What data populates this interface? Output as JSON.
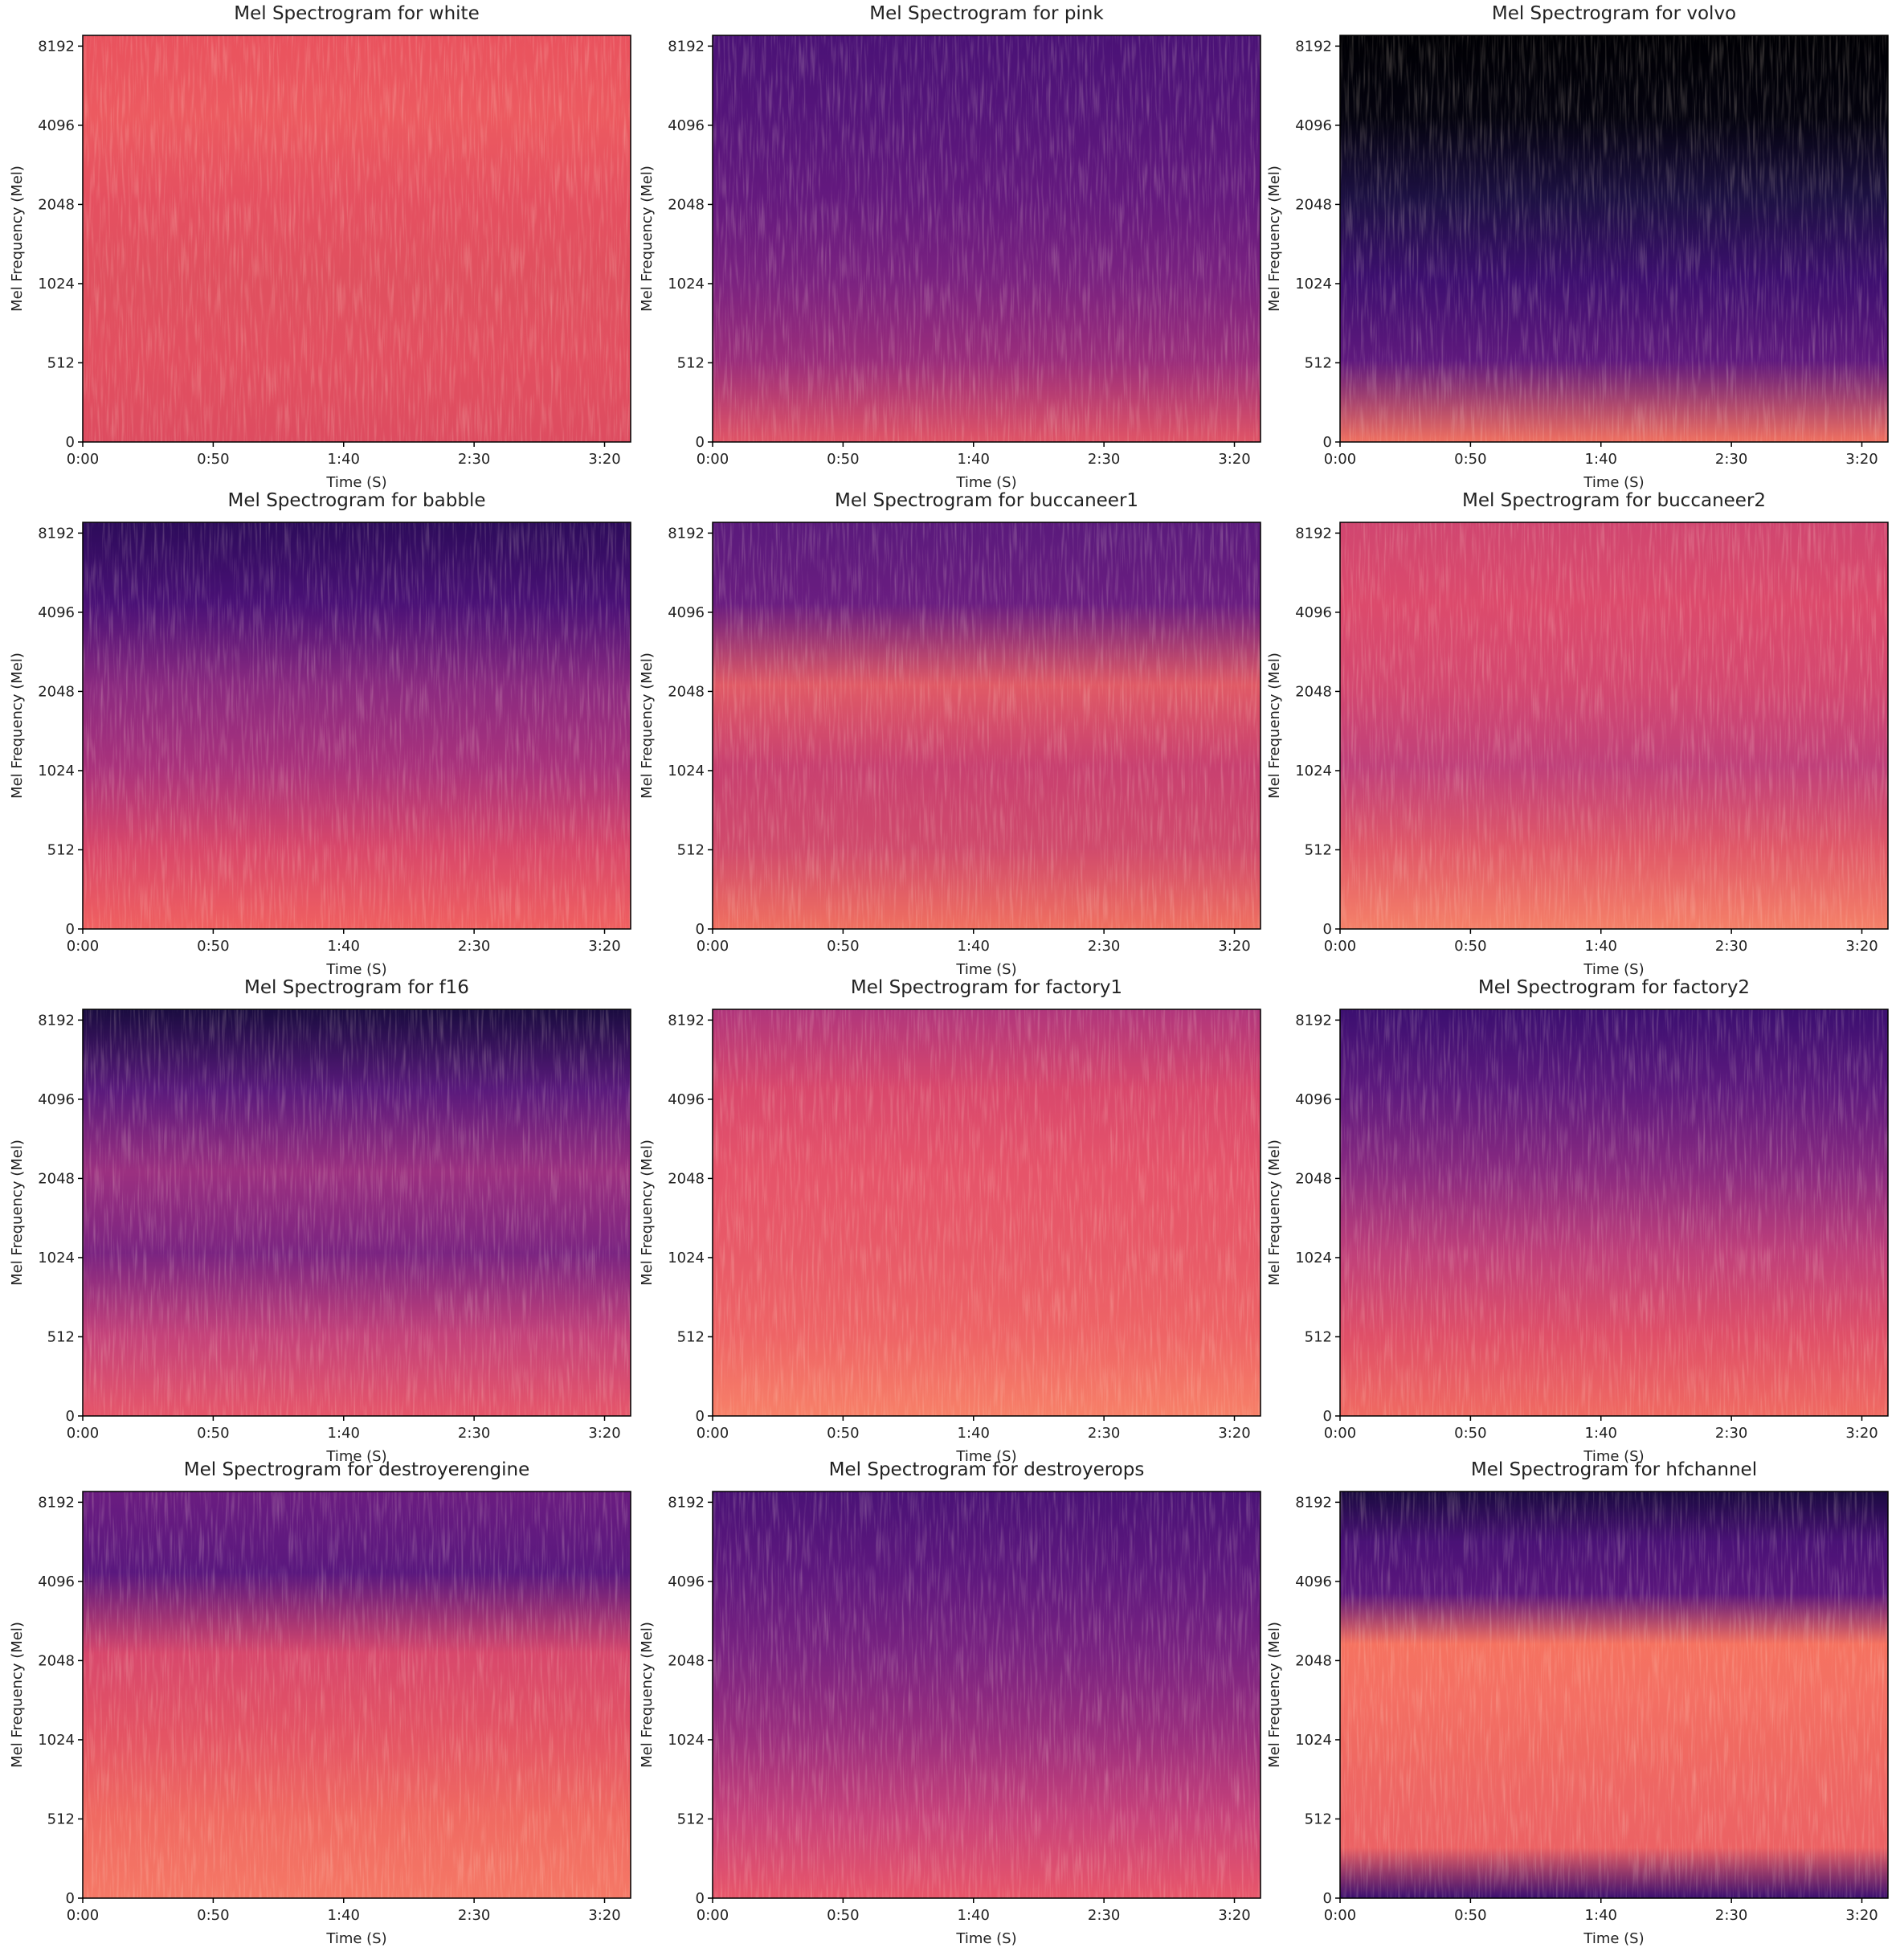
{
  "chart_data": [
    {
      "type": "spectrogram",
      "title": "Mel Spectrogram for white",
      "xlabel": "Time (S)",
      "ylabel": "Mel Frequency (Mel)",
      "xlim": [
        0,
        210
      ],
      "ylim": [
        0,
        9000
      ],
      "yscale": "symlog",
      "linthresh": 512,
      "logbase": 2,
      "xticks": [
        {
          "value": 0,
          "label": "0:00"
        },
        {
          "value": 50,
          "label": "0:50"
        },
        {
          "value": 100,
          "label": "1:40"
        },
        {
          "value": 150,
          "label": "2:30"
        },
        {
          "value": 200,
          "label": "3:20"
        }
      ],
      "yticks": [
        0,
        512,
        1024,
        2048,
        4096,
        8192
      ],
      "colors": [
        "#e9525e",
        "#ec5a60",
        "#e55060",
        "#e0505f",
        "#e24f60",
        "#dd4c60"
      ]
    },
    {
      "type": "spectrogram",
      "title": "Mel Spectrogram for pink",
      "xlabel": "Time (S)",
      "ylabel": "Mel Frequency (Mel)",
      "xlim": [
        0,
        210
      ],
      "ylim": [
        0,
        9000
      ],
      "yscale": "symlog",
      "linthresh": 512,
      "logbase": 2,
      "xticks": [
        {
          "value": 0,
          "label": "0:00"
        },
        {
          "value": 50,
          "label": "0:50"
        },
        {
          "value": 100,
          "label": "1:40"
        },
        {
          "value": 150,
          "label": "2:30"
        },
        {
          "value": 200,
          "label": "3:20"
        }
      ],
      "yticks": [
        0,
        512,
        1024,
        2048,
        4096,
        8192
      ],
      "colors": [
        "#4a1276",
        "#55157a",
        "#64197e",
        "#7a2280",
        "#9a2d7b",
        "#e05466"
      ]
    },
    {
      "type": "spectrogram",
      "title": "Mel Spectrogram for volvo",
      "xlabel": "Time (S)",
      "ylabel": "Mel Frequency (Mel)",
      "xlim": [
        0,
        210
      ],
      "ylim": [
        0,
        9000
      ],
      "yscale": "symlog",
      "linthresh": 512,
      "logbase": 2,
      "xticks": [
        {
          "value": 0,
          "label": "0:00"
        },
        {
          "value": 50,
          "label": "0:50"
        },
        {
          "value": 100,
          "label": "1:40"
        },
        {
          "value": 150,
          "label": "2:30"
        },
        {
          "value": 200,
          "label": "3:20"
        }
      ],
      "yticks": [
        0,
        512,
        1024,
        2048,
        4096,
        8192
      ],
      "colors": [
        "#000004",
        "#04030e",
        "#1d1143",
        "#3d0f6f",
        "#5f197d",
        "#f07060"
      ]
    },
    {
      "type": "spectrogram",
      "title": "Mel Spectrogram for babble",
      "xlabel": "Time (S)",
      "ylabel": "Mel Frequency (Mel)",
      "xlim": [
        0,
        210
      ],
      "ylim": [
        0,
        9000
      ],
      "yscale": "symlog",
      "linthresh": 512,
      "logbase": 2,
      "xticks": [
        {
          "value": 0,
          "label": "0:00"
        },
        {
          "value": 50,
          "label": "0:50"
        },
        {
          "value": 100,
          "label": "1:40"
        },
        {
          "value": 150,
          "label": "2:30"
        },
        {
          "value": 200,
          "label": "3:20"
        }
      ],
      "yticks": [
        0,
        512,
        1024,
        2048,
        4096,
        8192
      ],
      "colors": [
        "#2c0b5a",
        "#4a1176",
        "#8a2a80",
        "#a9327c",
        "#d8476a",
        "#f06060"
      ]
    },
    {
      "type": "spectrogram",
      "title": "Mel Spectrogram for buccaneer1",
      "xlabel": "Time (S)",
      "ylabel": "Mel Frequency (Mel)",
      "xlim": [
        0,
        210
      ],
      "ylim": [
        0,
        9000
      ],
      "yscale": "symlog",
      "linthresh": 512,
      "logbase": 2,
      "xticks": [
        {
          "value": 0,
          "label": "0:00"
        },
        {
          "value": 50,
          "label": "0:50"
        },
        {
          "value": 100,
          "label": "1:40"
        },
        {
          "value": 150,
          "label": "2:30"
        },
        {
          "value": 200,
          "label": "3:20"
        }
      ],
      "yticks": [
        0,
        512,
        1024,
        2048,
        4096,
        8192
      ],
      "colors": [
        "#5a1a7c",
        "#6a1d80",
        "#e05a66",
        "#c84070",
        "#d04a6c",
        "#f07060"
      ]
    },
    {
      "type": "spectrogram",
      "title": "Mel Spectrogram for buccaneer2",
      "xlabel": "Time (S)",
      "ylabel": "Mel Frequency (Mel)",
      "xlim": [
        0,
        210
      ],
      "ylim": [
        0,
        9000
      ],
      "yscale": "symlog",
      "linthresh": 512,
      "logbase": 2,
      "xticks": [
        {
          "value": 0,
          "label": "0:00"
        },
        {
          "value": 50,
          "label": "0:50"
        },
        {
          "value": 100,
          "label": "1:40"
        },
        {
          "value": 150,
          "label": "2:30"
        },
        {
          "value": 200,
          "label": "3:20"
        }
      ],
      "yticks": [
        0,
        512,
        1024,
        2048,
        4096,
        8192
      ],
      "colors": [
        "#d04670",
        "#dc4a6c",
        "#d44870",
        "#c0407a",
        "#e05868",
        "#f58068"
      ]
    },
    {
      "type": "spectrogram",
      "title": "Mel Spectrogram for f16",
      "xlabel": "Time (S)",
      "ylabel": "Mel Frequency (Mel)",
      "xlim": [
        0,
        210
      ],
      "ylim": [
        0,
        9000
      ],
      "yscale": "symlog",
      "linthresh": 512,
      "logbase": 2,
      "xticks": [
        {
          "value": 0,
          "label": "0:00"
        },
        {
          "value": 50,
          "label": "0:50"
        },
        {
          "value": 100,
          "label": "1:40"
        },
        {
          "value": 150,
          "label": "2:30"
        },
        {
          "value": 200,
          "label": "3:20"
        }
      ],
      "yticks": [
        0,
        512,
        1024,
        2048,
        4096,
        8192
      ],
      "colors": [
        "#1a0c40",
        "#5a1a7c",
        "#9b3080",
        "#7a2481",
        "#c4427a",
        "#e6566a"
      ]
    },
    {
      "type": "spectrogram",
      "title": "Mel Spectrogram for factory1",
      "xlabel": "Time (S)",
      "ylabel": "Mel Frequency (Mel)",
      "xlim": [
        0,
        210
      ],
      "ylim": [
        0,
        9000
      ],
      "yscale": "symlog",
      "linthresh": 512,
      "logbase": 2,
      "xticks": [
        {
          "value": 0,
          "label": "0:00"
        },
        {
          "value": 50,
          "label": "0:50"
        },
        {
          "value": 100,
          "label": "1:40"
        },
        {
          "value": 150,
          "label": "2:30"
        },
        {
          "value": 200,
          "label": "3:20"
        }
      ],
      "yticks": [
        0,
        512,
        1024,
        2048,
        4096,
        8192
      ],
      "colors": [
        "#b0367c",
        "#d9486c",
        "#e6546a",
        "#e85a68",
        "#ee6466",
        "#f78068"
      ]
    },
    {
      "type": "spectrogram",
      "title": "Mel Spectrogram for factory2",
      "xlabel": "Time (S)",
      "ylabel": "Mel Frequency (Mel)",
      "xlim": [
        0,
        210
      ],
      "ylim": [
        0,
        9000
      ],
      "yscale": "symlog",
      "linthresh": 512,
      "logbase": 2,
      "xticks": [
        {
          "value": 0,
          "label": "0:00"
        },
        {
          "value": 50,
          "label": "0:50"
        },
        {
          "value": 100,
          "label": "1:40"
        },
        {
          "value": 150,
          "label": "2:30"
        },
        {
          "value": 200,
          "label": "3:20"
        }
      ],
      "yticks": [
        0,
        512,
        1024,
        2048,
        4096,
        8192
      ],
      "colors": [
        "#3b0f70",
        "#5e1a7e",
        "#8a2a80",
        "#c0407a",
        "#df4f68",
        "#f06a62"
      ]
    },
    {
      "type": "spectrogram",
      "title": "Mel Spectrogram for destroyerengine",
      "xlabel": "Time (S)",
      "ylabel": "Mel Frequency (Mel)",
      "xlim": [
        0,
        210
      ],
      "ylim": [
        0,
        9000
      ],
      "yscale": "symlog",
      "linthresh": 512,
      "logbase": 2,
      "xticks": [
        {
          "value": 0,
          "label": "0:00"
        },
        {
          "value": 50,
          "label": "0:50"
        },
        {
          "value": 100,
          "label": "1:40"
        },
        {
          "value": 150,
          "label": "2:30"
        },
        {
          "value": 200,
          "label": "3:20"
        }
      ],
      "yticks": [
        0,
        512,
        1024,
        2048,
        4096,
        8192
      ],
      "colors": [
        "#6a1c80",
        "#5a187e",
        "#d8486c",
        "#e45464",
        "#f06a62",
        "#f57866"
      ]
    },
    {
      "type": "spectrogram",
      "title": "Mel Spectrogram for destroyerops",
      "xlabel": "Time (S)",
      "ylabel": "Mel Frequency (Mel)",
      "xlim": [
        0,
        210
      ],
      "ylim": [
        0,
        9000
      ],
      "yscale": "symlog",
      "linthresh": 512,
      "logbase": 2,
      "xticks": [
        {
          "value": 0,
          "label": "0:00"
        },
        {
          "value": 50,
          "label": "0:50"
        },
        {
          "value": 100,
          "label": "1:40"
        },
        {
          "value": 150,
          "label": "2:30"
        },
        {
          "value": 200,
          "label": "3:20"
        }
      ],
      "yticks": [
        0,
        512,
        1024,
        2048,
        4096,
        8192
      ],
      "colors": [
        "#4a1276",
        "#5e187e",
        "#7a2381",
        "#9a2e7e",
        "#c8427a",
        "#e8566a"
      ]
    },
    {
      "type": "spectrogram",
      "title": "Mel Spectrogram for hfchannel",
      "xlabel": "Time (S)",
      "ylabel": "Mel Frequency (Mel)",
      "xlim": [
        0,
        210
      ],
      "ylim": [
        0,
        9000
      ],
      "yscale": "symlog",
      "linthresh": 512,
      "logbase": 2,
      "xticks": [
        {
          "value": 0,
          "label": "0:00"
        },
        {
          "value": 50,
          "label": "0:50"
        },
        {
          "value": 100,
          "label": "1:40"
        },
        {
          "value": 150,
          "label": "2:30"
        },
        {
          "value": 200,
          "label": "3:20"
        }
      ],
      "yticks": [
        0,
        512,
        1024,
        2048,
        4096,
        8192
      ],
      "colors": [
        "#1a0a40",
        "#4a1276",
        "#5a167c",
        "#f57260",
        "#f47064",
        "#f06a62",
        "#ee6664",
        "#ec6264",
        "#3b0f70"
      ]
    }
  ]
}
